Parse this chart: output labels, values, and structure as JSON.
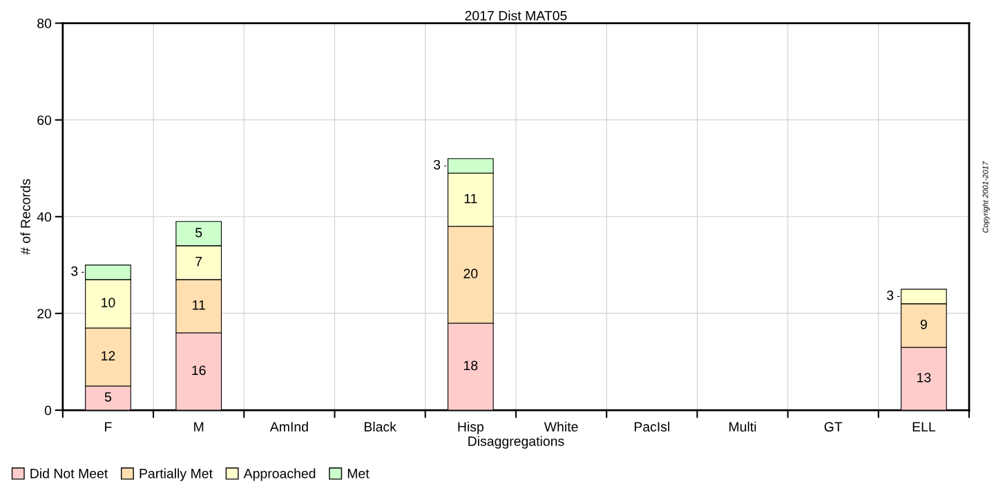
{
  "chart_data": {
    "type": "bar",
    "title": "2017 Dist MAT05",
    "xlabel": "Disaggregations",
    "ylabel": "# of Records",
    "categories": [
      "F",
      "M",
      "AmInd",
      "Black",
      "Hisp",
      "White",
      "PacIsl",
      "Multi",
      "GT",
      "ELL"
    ],
    "stacked": true,
    "data_labels": true,
    "grid": true,
    "legend": "bottom left",
    "ylim": [
      0,
      80
    ],
    "yticks": [
      0,
      20,
      40,
      60,
      80
    ],
    "annotations": [
      "Copyright 2001-2017"
    ],
    "series": [
      {
        "name": "Did Not Meet",
        "color": "#ffcccc",
        "values": [
          5,
          16,
          null,
          null,
          18,
          null,
          null,
          null,
          null,
          13
        ]
      },
      {
        "name": "Partially Met",
        "color": "#ffdfb0",
        "values": [
          12,
          11,
          null,
          null,
          20,
          null,
          null,
          null,
          null,
          9
        ]
      },
      {
        "name": "Approached",
        "color": "#ffffcc",
        "values": [
          10,
          7,
          null,
          null,
          11,
          null,
          null,
          null,
          null,
          3
        ]
      },
      {
        "name": "Met",
        "color": "#ccffcc",
        "values": [
          3,
          5,
          null,
          null,
          3,
          null,
          null,
          null,
          null,
          null
        ]
      }
    ]
  }
}
